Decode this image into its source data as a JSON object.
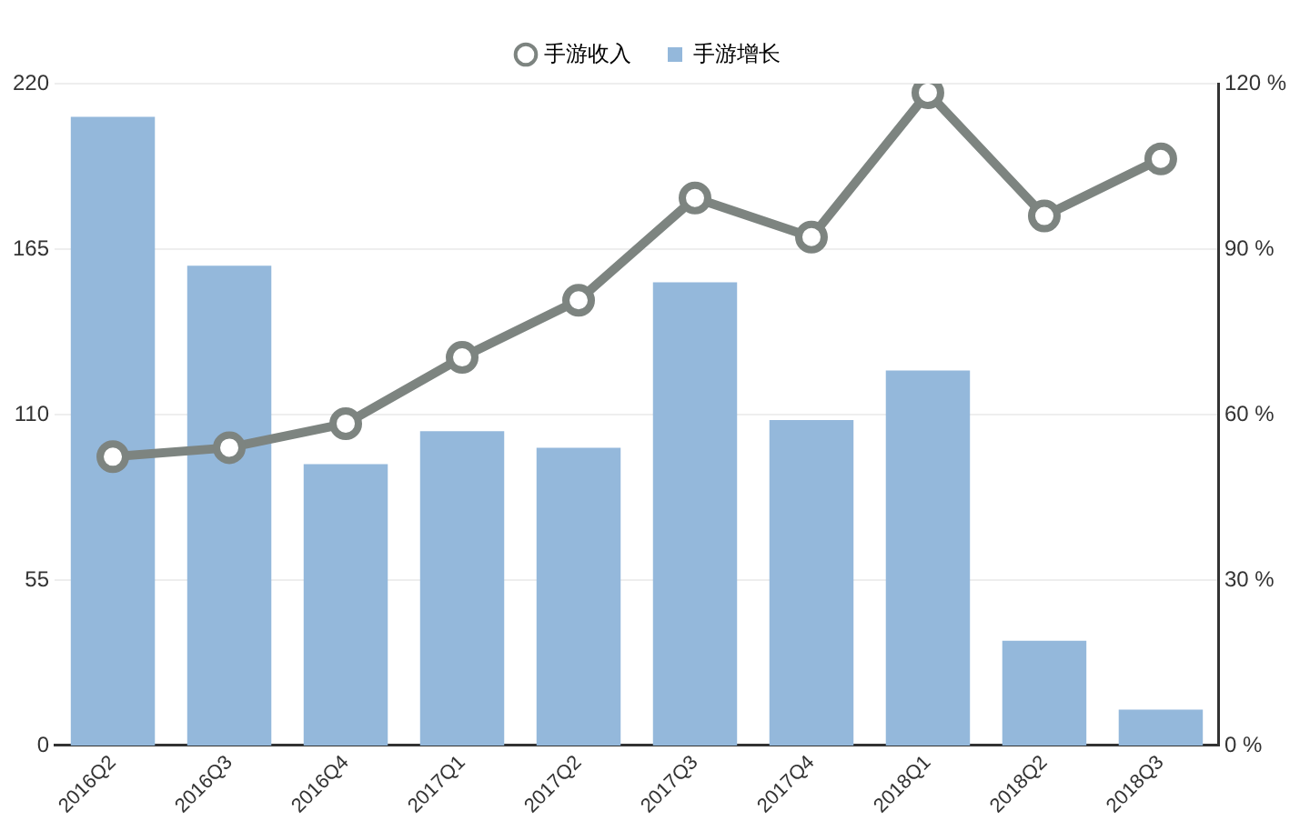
{
  "chart_data": {
    "type": "bar",
    "categories": [
      "2016Q2",
      "2016Q3",
      "2016Q4",
      "2017Q1",
      "2017Q2",
      "2017Q3",
      "2017Q4",
      "2018Q1",
      "2018Q2",
      "2018Q3"
    ],
    "series": [
      {
        "name": "手游收入",
        "type": "line",
        "color": "#7d8480",
        "values": [
          96,
          99,
          107,
          129,
          148,
          182,
          169,
          217,
          176,
          195
        ]
      },
      {
        "name": "手游增长",
        "type": "bar",
        "axis": "y2",
        "color": "#94b8db",
        "values": [
          114,
          87,
          51,
          57,
          54,
          84,
          59,
          68,
          19,
          6.5
        ]
      }
    ],
    "ylim": [
      0,
      220
    ],
    "yticks": [
      0,
      55,
      110,
      165,
      220
    ],
    "y2lim": [
      0,
      120
    ],
    "y2ticks": [
      {
        "value": 0,
        "label": "0 %"
      },
      {
        "value": 30,
        "label": "30 %"
      },
      {
        "value": 60,
        "label": "60 %"
      },
      {
        "value": 90,
        "label": "90 %"
      },
      {
        "value": 120,
        "label": "120 %"
      }
    ],
    "grid": "y",
    "legend": "top",
    "marker": "circle",
    "line_style": "solid"
  }
}
